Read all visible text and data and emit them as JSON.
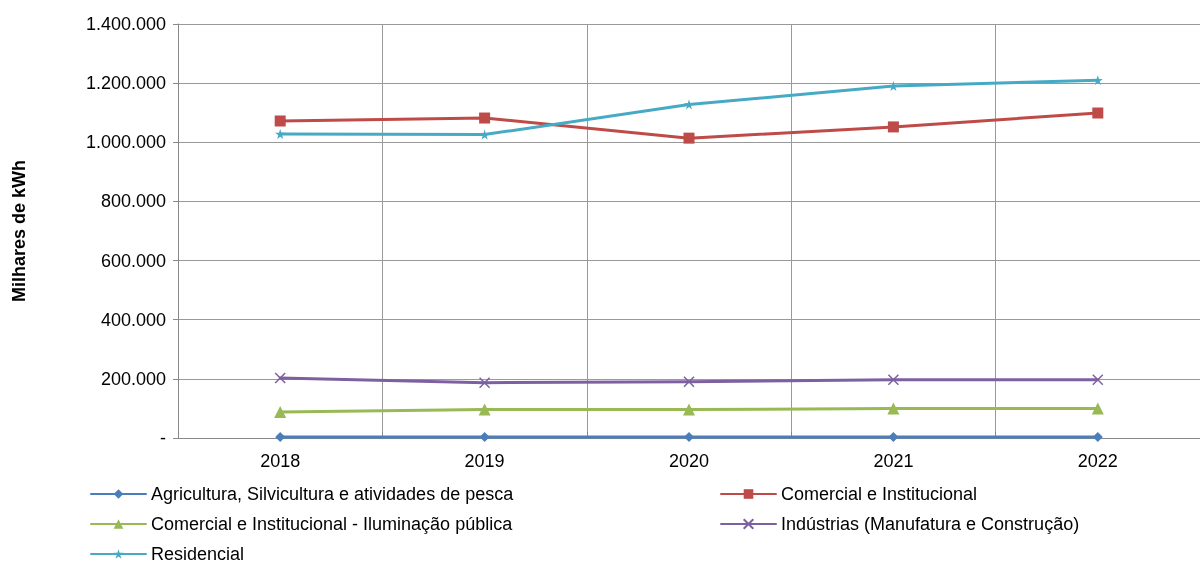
{
  "chart_data": {
    "type": "line",
    "ylabel": "Milhares de kWh",
    "categories": [
      "2018",
      "2019",
      "2020",
      "2021",
      "2022"
    ],
    "series": [
      {
        "name": "Agricultura, Silvicultura e atividades de pesca",
        "color": "#4a7ebb",
        "marker": "diamond",
        "values": [
          3000,
          3000,
          3000,
          3000,
          3000
        ]
      },
      {
        "name": "Comercial e Institucional",
        "color": "#be4b48",
        "marker": "square",
        "values": [
          1072000,
          1082000,
          1014000,
          1052000,
          1099000
        ]
      },
      {
        "name": "Comercial e Institucional - Iluminação pública",
        "color": "#98b954",
        "marker": "triangle",
        "values": [
          88000,
          96000,
          96000,
          100000,
          100000
        ]
      },
      {
        "name": "Indústrias (Manufatura e Construção)",
        "color": "#7d60a0",
        "marker": "cross",
        "values": [
          203000,
          187000,
          190000,
          197000,
          197000
        ]
      },
      {
        "name": "Residencial",
        "color": "#46aac5",
        "marker": "star",
        "values": [
          1028000,
          1026000,
          1128000,
          1190000,
          1210000
        ]
      }
    ],
    "ylim": [
      0,
      1400000
    ],
    "yticks": [
      {
        "value": 0,
        "label": "-"
      },
      {
        "value": 200000,
        "label": "200.000"
      },
      {
        "value": 400000,
        "label": "400.000"
      },
      {
        "value": 600000,
        "label": "600.000"
      },
      {
        "value": 800000,
        "label": "800.000"
      },
      {
        "value": 1000000,
        "label": "1.000.000"
      },
      {
        "value": 1200000,
        "label": "1.200.000"
      },
      {
        "value": 1400000,
        "label": "1.400.000"
      }
    ],
    "grid": true,
    "legend": "bottom",
    "line_style": "solid"
  }
}
